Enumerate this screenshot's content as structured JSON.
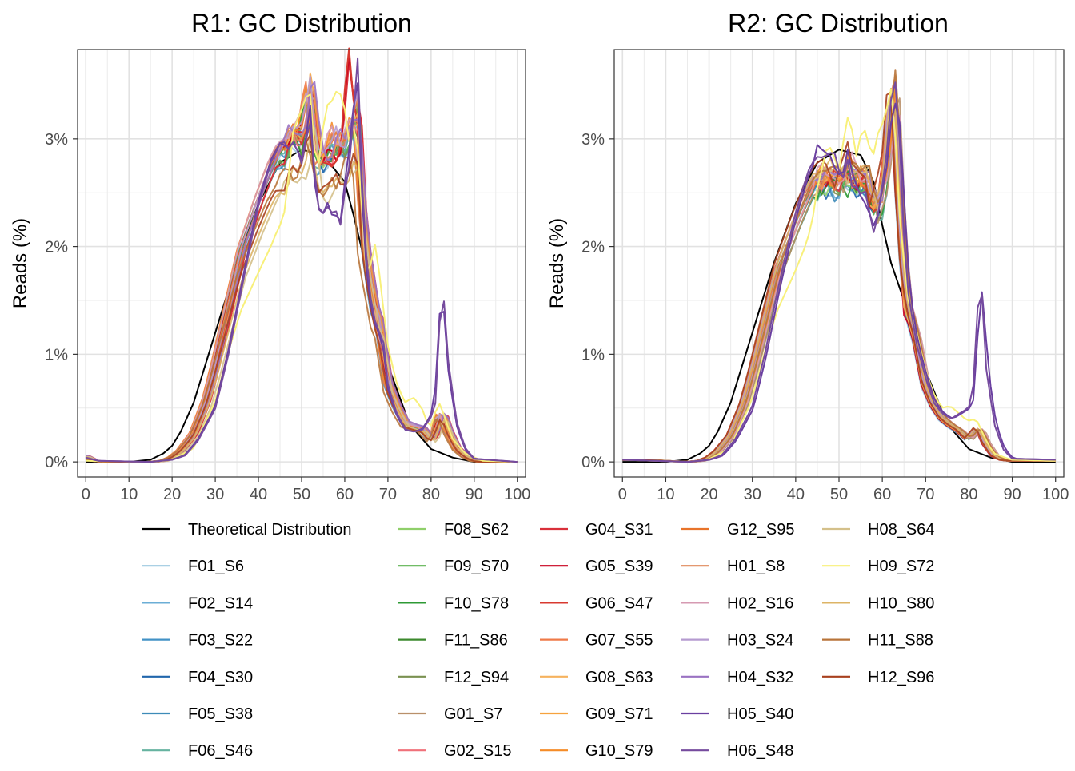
{
  "chart_data": [
    {
      "type": "line",
      "title": "R1: GC Distribution",
      "xlabel": "",
      "ylabel": "Reads (%)",
      "xlim": [
        0,
        100
      ],
      "ylim": [
        0,
        3.7
      ],
      "xticks": [
        "0",
        "10",
        "20",
        "30",
        "40",
        "50",
        "60",
        "70",
        "80",
        "90",
        "100"
      ],
      "yticks": [
        "0%",
        "1%",
        "2%",
        "3%"
      ],
      "grid": true,
      "series": [
        {
          "name": "Theoretical Distribution",
          "color": "#000000",
          "x": [
            0,
            5,
            10,
            15,
            18,
            20,
            22,
            25,
            30,
            35,
            40,
            45,
            50,
            55,
            60,
            62,
            65,
            70,
            75,
            80,
            85,
            90,
            95,
            100
          ],
          "y": [
            0,
            0,
            0,
            0.02,
            0.08,
            0.15,
            0.28,
            0.55,
            1.2,
            1.85,
            2.4,
            2.78,
            2.9,
            2.85,
            2.6,
            2.3,
            1.8,
            0.9,
            0.35,
            0.12,
            0.04,
            0,
            0,
            0
          ]
        },
        {
          "name": "F01_S6",
          "color": "#9ECAE1",
          "profile": "normal"
        },
        {
          "name": "F02_S14",
          "color": "#6BAED6",
          "profile": "normal"
        },
        {
          "name": "F03_S22",
          "color": "#4292C6",
          "profile": "normal"
        },
        {
          "name": "F04_S30",
          "color": "#2166AC",
          "profile": "normal"
        },
        {
          "name": "F05_S38",
          "color": "#3D8BB8",
          "profile": "normal"
        },
        {
          "name": "F06_S46",
          "color": "#66B3A0",
          "profile": "normal"
        },
        {
          "name": "F08_S62",
          "color": "#8FCF6A",
          "profile": "normal"
        },
        {
          "name": "F09_S70",
          "color": "#5DB350",
          "profile": "normal"
        },
        {
          "name": "F10_S78",
          "color": "#2E9A35",
          "profile": "normal"
        },
        {
          "name": "F11_S86",
          "color": "#3C8A2E",
          "profile": "normal"
        },
        {
          "name": "F12_S94",
          "color": "#7A9150",
          "profile": "normal"
        },
        {
          "name": "G01_S7",
          "color": "#B9906A",
          "profile": "normal"
        },
        {
          "name": "G02_S15",
          "color": "#F0717A",
          "profile": "normal"
        },
        {
          "name": "G04_S31",
          "color": "#D9303A",
          "profile": "red"
        },
        {
          "name": "G05_S39",
          "color": "#C8001E",
          "profile": "red"
        },
        {
          "name": "G06_S47",
          "color": "#D83A30",
          "profile": "red"
        },
        {
          "name": "G07_S55",
          "color": "#EF7A48",
          "profile": "normal"
        },
        {
          "name": "G08_S63",
          "color": "#F6B25E",
          "profile": "normal"
        },
        {
          "name": "G09_S71",
          "color": "#F6A23E",
          "profile": "normal"
        },
        {
          "name": "G10_S79",
          "color": "#F58C28",
          "profile": "normal"
        },
        {
          "name": "G12_S95",
          "color": "#E8732A",
          "profile": "normal"
        },
        {
          "name": "H01_S8",
          "color": "#E08A5C",
          "profile": "normal"
        },
        {
          "name": "H02_S16",
          "color": "#D69AB2",
          "profile": "normal"
        },
        {
          "name": "H03_S24",
          "color": "#B59BD0",
          "profile": "normal"
        },
        {
          "name": "H04_S32",
          "color": "#9A72C2",
          "profile": "normal"
        },
        {
          "name": "H05_S40",
          "color": "#6A3FA0",
          "profile": "spike"
        },
        {
          "name": "H06_S48",
          "color": "#764B9E",
          "profile": "spike"
        },
        {
          "name": "H08_S64",
          "color": "#D4C08A",
          "profile": "normal"
        },
        {
          "name": "H09_S72",
          "color": "#F8F07A",
          "profile": "yellow"
        },
        {
          "name": "H10_S80",
          "color": "#DDB466",
          "profile": "normal"
        },
        {
          "name": "H11_S88",
          "color": "#B8743A",
          "profile": "normal"
        },
        {
          "name": "H12_S96",
          "color": "#A8401E",
          "profile": "normal"
        }
      ]
    },
    {
      "type": "line",
      "title": "R2: GC Distribution",
      "xlabel": "",
      "ylabel": "Reads (%)",
      "xlim": [
        0,
        100
      ],
      "ylim": [
        0,
        3.7
      ],
      "xticks": [
        "0",
        "10",
        "20",
        "30",
        "40",
        "50",
        "60",
        "70",
        "80",
        "90",
        "100"
      ],
      "yticks": [
        "0%",
        "1%",
        "2%",
        "3%"
      ],
      "grid": true,
      "series": [
        {
          "name": "Theoretical Distribution",
          "color": "#000000",
          "x": [
            0,
            5,
            10,
            15,
            18,
            20,
            22,
            25,
            30,
            35,
            40,
            45,
            50,
            55,
            58,
            60,
            62,
            65,
            70,
            75,
            80,
            85,
            90,
            95,
            100
          ],
          "y": [
            0,
            0,
            0,
            0.02,
            0.08,
            0.15,
            0.28,
            0.55,
            1.2,
            1.85,
            2.4,
            2.78,
            2.9,
            2.85,
            2.6,
            2.2,
            1.85,
            1.5,
            0.85,
            0.35,
            0.12,
            0.04,
            0,
            0,
            0
          ]
        },
        {
          "name": "F01_S6",
          "color": "#9ECAE1",
          "profile": "normal"
        },
        {
          "name": "F02_S14",
          "color": "#6BAED6",
          "profile": "normal"
        },
        {
          "name": "F03_S22",
          "color": "#4292C6",
          "profile": "normal"
        },
        {
          "name": "F04_S30",
          "color": "#2166AC",
          "profile": "normal"
        },
        {
          "name": "F05_S38",
          "color": "#3D8BB8",
          "profile": "normal"
        },
        {
          "name": "F06_S46",
          "color": "#66B3A0",
          "profile": "normal"
        },
        {
          "name": "F08_S62",
          "color": "#8FCF6A",
          "profile": "normal"
        },
        {
          "name": "F09_S70",
          "color": "#5DB350",
          "profile": "normal"
        },
        {
          "name": "F10_S78",
          "color": "#2E9A35",
          "profile": "normal"
        },
        {
          "name": "F11_S86",
          "color": "#3C8A2E",
          "profile": "normal"
        },
        {
          "name": "F12_S94",
          "color": "#7A9150",
          "profile": "normal"
        },
        {
          "name": "G01_S7",
          "color": "#B9906A",
          "profile": "normal"
        },
        {
          "name": "G02_S15",
          "color": "#F0717A",
          "profile": "normal"
        },
        {
          "name": "G04_S31",
          "color": "#D9303A",
          "profile": "normal"
        },
        {
          "name": "G05_S39",
          "color": "#C8001E",
          "profile": "normal"
        },
        {
          "name": "G06_S47",
          "color": "#D83A30",
          "profile": "normal"
        },
        {
          "name": "G07_S55",
          "color": "#EF7A48",
          "profile": "normal"
        },
        {
          "name": "G08_S63",
          "color": "#F6B25E",
          "profile": "normal"
        },
        {
          "name": "G09_S71",
          "color": "#F6A23E",
          "profile": "normal"
        },
        {
          "name": "G10_S79",
          "color": "#F58C28",
          "profile": "normal"
        },
        {
          "name": "G12_S95",
          "color": "#E8732A",
          "profile": "normal"
        },
        {
          "name": "H01_S8",
          "color": "#E08A5C",
          "profile": "normal"
        },
        {
          "name": "H02_S16",
          "color": "#D69AB2",
          "profile": "normal"
        },
        {
          "name": "H03_S24",
          "color": "#B59BD0",
          "profile": "normal"
        },
        {
          "name": "H04_S32",
          "color": "#9A72C2",
          "profile": "normal"
        },
        {
          "name": "H05_S40",
          "color": "#6A3FA0",
          "profile": "spike"
        },
        {
          "name": "H06_S48",
          "color": "#764B9E",
          "profile": "spike"
        },
        {
          "name": "H08_S64",
          "color": "#D4C08A",
          "profile": "normal"
        },
        {
          "name": "H09_S72",
          "color": "#F8F07A",
          "profile": "yellow"
        },
        {
          "name": "H10_S80",
          "color": "#DDB466",
          "profile": "normal"
        },
        {
          "name": "H11_S88",
          "color": "#B8743A",
          "profile": "normal"
        },
        {
          "name": "H12_S96",
          "color": "#A8401E",
          "profile": "normal"
        }
      ]
    }
  ],
  "legend": {
    "placement": "bottom",
    "entries": [
      {
        "name": "Theoretical Distribution",
        "color": "#000000"
      },
      {
        "name": "F01_S6",
        "color": "#9ECAE1"
      },
      {
        "name": "F02_S14",
        "color": "#6BAED6"
      },
      {
        "name": "F03_S22",
        "color": "#4292C6"
      },
      {
        "name": "F04_S30",
        "color": "#2166AC"
      },
      {
        "name": "F05_S38",
        "color": "#3D8BB8"
      },
      {
        "name": "F06_S46",
        "color": "#66B3A0"
      },
      {
        "name": "F08_S62",
        "color": "#8FCF6A"
      },
      {
        "name": "F09_S70",
        "color": "#5DB350"
      },
      {
        "name": "F10_S78",
        "color": "#2E9A35"
      },
      {
        "name": "F11_S86",
        "color": "#3C8A2E"
      },
      {
        "name": "F12_S94",
        "color": "#7A9150"
      },
      {
        "name": "G01_S7",
        "color": "#B9906A"
      },
      {
        "name": "G02_S15",
        "color": "#F0717A"
      },
      {
        "name": "G04_S31",
        "color": "#D9303A"
      },
      {
        "name": "G05_S39",
        "color": "#C8001E"
      },
      {
        "name": "G06_S47",
        "color": "#D83A30"
      },
      {
        "name": "G07_S55",
        "color": "#EF7A48"
      },
      {
        "name": "G08_S63",
        "color": "#F6B25E"
      },
      {
        "name": "G09_S71",
        "color": "#F6A23E"
      },
      {
        "name": "G10_S79",
        "color": "#F58C28"
      },
      {
        "name": "G12_S95",
        "color": "#E8732A"
      },
      {
        "name": "H01_S8",
        "color": "#E08A5C"
      },
      {
        "name": "H02_S16",
        "color": "#D69AB2"
      },
      {
        "name": "H03_S24",
        "color": "#B59BD0"
      },
      {
        "name": "H04_S32",
        "color": "#9A72C2"
      },
      {
        "name": "H05_S40",
        "color": "#6A3FA0"
      },
      {
        "name": "H06_S48",
        "color": "#764B9E"
      },
      {
        "name": "H08_S64",
        "color": "#D4C08A"
      },
      {
        "name": "H09_S72",
        "color": "#F8F07A"
      },
      {
        "name": "H10_S80",
        "color": "#DDB466"
      },
      {
        "name": "H11_S88",
        "color": "#B8743A"
      },
      {
        "name": "H12_S96",
        "color": "#A8401E"
      }
    ]
  }
}
